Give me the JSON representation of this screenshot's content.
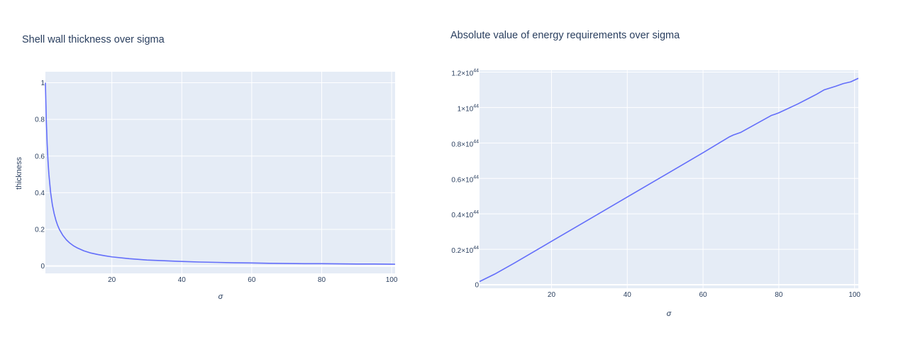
{
  "chart_data": [
    {
      "type": "line",
      "title": "Shell wall thickness over sigma",
      "xlabel": "σ",
      "ylabel": "thickness",
      "xlim": [
        1,
        101
      ],
      "ylim": [
        -0.04,
        1.06
      ],
      "xticks": [
        20,
        40,
        60,
        80,
        100
      ],
      "xtick_labels": [
        "20",
        "40",
        "60",
        "80",
        "100"
      ],
      "yticks": [
        0,
        0.2,
        0.4,
        0.6,
        0.8,
        1
      ],
      "ytick_labels": [
        "0",
        "0.2",
        "0.4",
        "0.6",
        "0.8",
        "1"
      ],
      "grid": true,
      "colors": {
        "plot_bg": "#e5ecf6",
        "grid": "#ffffff",
        "line": "#636efa",
        "text": "#2a3f5f"
      },
      "series": [
        {
          "function": "1/sigma",
          "x": [
            1,
            1.25,
            1.5,
            1.75,
            2,
            2.5,
            3,
            3.5,
            4,
            4.5,
            5,
            6,
            7,
            8,
            9,
            10,
            12,
            14,
            16,
            18,
            20,
            25,
            30,
            35,
            40,
            45,
            50,
            55,
            60,
            65,
            70,
            75,
            80,
            85,
            90,
            95,
            100,
            101
          ],
          "y": [
            1,
            0.8,
            0.667,
            0.571,
            0.5,
            0.4,
            0.333,
            0.286,
            0.25,
            0.222,
            0.2,
            0.167,
            0.143,
            0.125,
            0.111,
            0.1,
            0.083,
            0.071,
            0.063,
            0.056,
            0.05,
            0.04,
            0.033,
            0.029,
            0.025,
            0.022,
            0.02,
            0.018,
            0.017,
            0.015,
            0.014,
            0.013,
            0.013,
            0.012,
            0.011,
            0.011,
            0.01,
            0.0099
          ]
        }
      ]
    },
    {
      "type": "line",
      "title": "Absolute value of energy requirements over sigma",
      "xlabel": "σ",
      "ylabel": "",
      "xlim": [
        1,
        101
      ],
      "ylim": [
        -0.02,
        1.21
      ],
      "y_multiplier_label": "×10",
      "y_exponent": "44",
      "xticks": [
        20,
        40,
        60,
        80,
        100
      ],
      "xtick_labels": [
        "20",
        "40",
        "60",
        "80",
        "100"
      ],
      "yticks": [
        0,
        0.2,
        0.4,
        0.6,
        0.8,
        1,
        1.2
      ],
      "ytick_labels": [
        "0",
        "0.2",
        "0.4",
        "0.6",
        "0.8",
        "1",
        "1.2"
      ],
      "grid": true,
      "colors": {
        "plot_bg": "#e5ecf6",
        "grid": "#ffffff",
        "line": "#636efa",
        "text": "#2a3f5f"
      },
      "series": [
        {
          "x": [
            1,
            5,
            10,
            20,
            30,
            40,
            50,
            60,
            67,
            68,
            70,
            78,
            79,
            80,
            85,
            90,
            92,
            95,
            97,
            98,
            99,
            100,
            101
          ],
          "y": [
            0.018,
            0.06,
            0.12,
            0.245,
            0.37,
            0.495,
            0.62,
            0.745,
            0.835,
            0.845,
            0.86,
            0.955,
            0.962,
            0.97,
            1.02,
            1.075,
            1.1,
            1.12,
            1.135,
            1.14,
            1.145,
            1.155,
            1.165
          ]
        }
      ]
    }
  ]
}
